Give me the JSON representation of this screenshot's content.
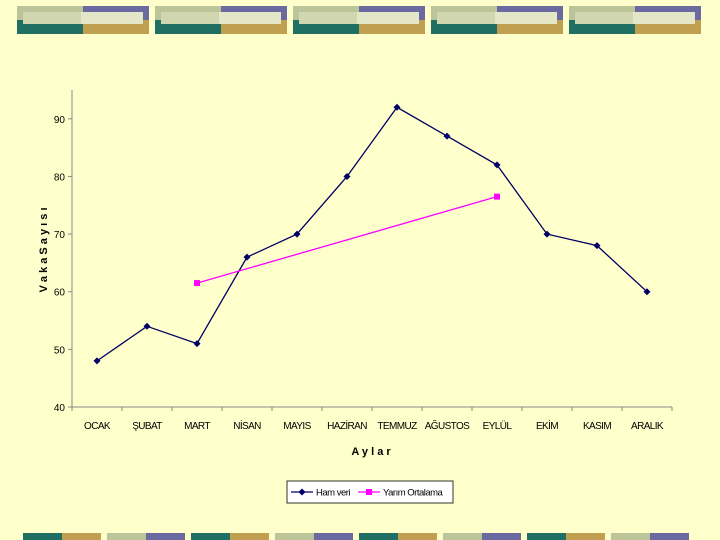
{
  "chart_data": {
    "type": "line",
    "categories": [
      "OCAK",
      "ŞUBAT",
      "MART",
      "NİSAN",
      "MAYIS",
      "HAZİRAN",
      "TEMMUZ",
      "AĞUSTOS",
      "EYLÜL",
      "EKİM",
      "KASIM",
      "ARALIK"
    ],
    "series": [
      {
        "name": "Ham veri",
        "values": [
          48,
          54,
          51,
          66,
          70,
          80,
          92,
          87,
          82,
          70,
          68,
          60
        ],
        "color": "#000066",
        "marker": "diamond"
      },
      {
        "name": "Yarım Ortalama",
        "values": [
          null,
          null,
          61.5,
          null,
          null,
          null,
          null,
          null,
          76.5,
          null,
          null,
          null
        ],
        "color": "#ff00ff",
        "marker": "square"
      }
    ],
    "xlabel": "A y l a r",
    "ylabel": "V a k a  S a y ı s ı",
    "ylim": [
      40,
      95
    ],
    "yticks": [
      40,
      50,
      60,
      70,
      80,
      90
    ],
    "grid": false,
    "legend": "bottom-center"
  },
  "colors": {
    "background": "#ffffcc",
    "tile_sage": "#bcc49a",
    "tile_purple": "#6a6aa0",
    "tile_teal": "#1f6f63",
    "tile_gold": "#c0a050"
  }
}
